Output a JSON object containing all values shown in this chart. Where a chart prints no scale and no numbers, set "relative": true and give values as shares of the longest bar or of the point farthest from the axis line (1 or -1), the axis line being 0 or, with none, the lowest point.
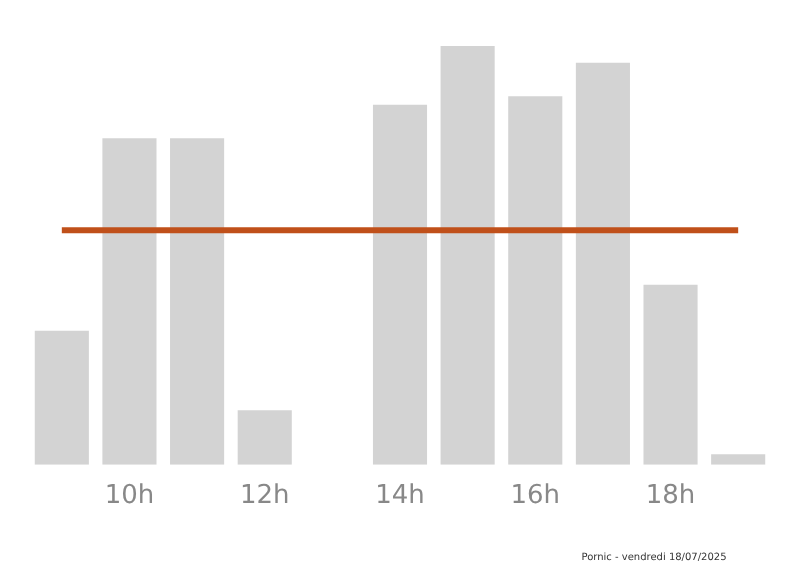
{
  "chart_data": {
    "type": "bar",
    "relative": true,
    "categories": [
      null,
      "10h",
      null,
      "12h",
      null,
      "14h",
      null,
      "16h",
      null,
      "18h",
      null
    ],
    "values": [
      0.32,
      0.78,
      0.78,
      0.13,
      0,
      0.86,
      1,
      0.88,
      0.96,
      0.43,
      0.025
    ],
    "color": "#d3d3d3",
    "ref_lines": [
      {
        "axis": "y",
        "value": 0.56,
        "color": "#c0501a"
      }
    ],
    "grid": false,
    "legend": false,
    "annotations": [
      "Pornic - vendredi 18/07/2025"
    ]
  }
}
